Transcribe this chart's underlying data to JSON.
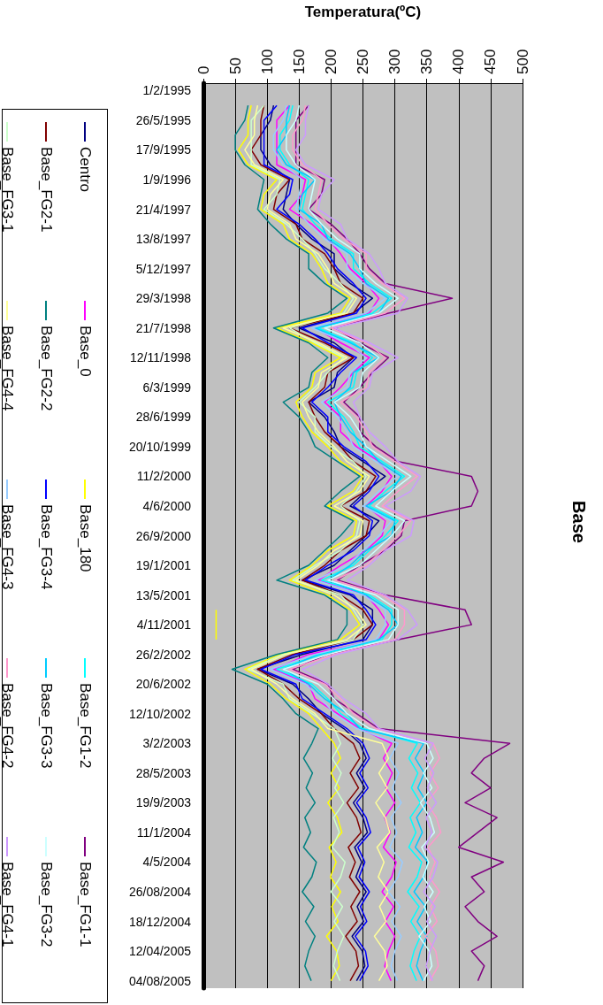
{
  "chart_data": {
    "type": "line",
    "title": "Base",
    "xlabel": "Temperatura(ºC)",
    "orientation": "horizontal",
    "categories": [
      "1/2/1995",
      null,
      "26/5/1995",
      null,
      "17/9/1995",
      null,
      "1/9/1996",
      null,
      "21/4/1997",
      null,
      "13/8/1997",
      null,
      "5/12/1997",
      null,
      "29/3/1998",
      null,
      "21/7/1998",
      null,
      "12/11/1998",
      null,
      "6/3/1999",
      null,
      "28/6/1999",
      null,
      "20/10/1999",
      null,
      "11/2/2000",
      null,
      "4/6/2000",
      null,
      "26/9/2000",
      null,
      "19/1/2001",
      null,
      "13/5/2001",
      null,
      "4/11/2001",
      null,
      "26/2/2002",
      null,
      "20/6/2002",
      null,
      "12/10/2002",
      null,
      "3/2/2003",
      null,
      "28/5/2003",
      null,
      "19/9/2003",
      null,
      "11/1/2004",
      null,
      "4/5/2004",
      null,
      "26/08/2004",
      null,
      "18/12/2004",
      null,
      "12/04/2005",
      null,
      "04/08/2005"
    ],
    "xlim": [
      0,
      500
    ],
    "xticks": [
      0,
      50,
      100,
      150,
      200,
      250,
      300,
      350,
      400,
      450,
      500
    ],
    "grid": "x",
    "legend": "left",
    "marker": "none",
    "series": [
      {
        "name": "Centro",
        "color": "#000080",
        "values": [
          null,
          110,
          105,
          90,
          90,
          105,
          135,
          130,
          125,
          145,
          170,
          205,
          205,
          230,
          265,
          235,
          150,
          205,
          235,
          210,
          205,
          165,
          190,
          205,
          215,
          250,
          285,
          255,
          230,
          275,
          255,
          230,
          205,
          155,
          230,
          265,
          265,
          250,
          155,
          85,
          140,
          165,
          185,
          220,
          245,
          255,
          240,
          253,
          235,
          250,
          257,
          237,
          248,
          239,
          255,
          241,
          251,
          233,
          249,
          253,
          240
        ]
      },
      {
        "name": "Base_0",
        "color": "#ff00ff",
        "values": [
          null,
          135,
          115,
          115,
          115,
          115,
          160,
          155,
          135,
          170,
          195,
          215,
          230,
          255,
          275,
          260,
          175,
          215,
          260,
          235,
          215,
          190,
          215,
          215,
          240,
          275,
          295,
          280,
          255,
          285,
          280,
          255,
          215,
          180,
          255,
          275,
          290,
          275,
          165,
          110,
          165,
          175,
          210,
          245,
          295,
          282,
          296,
          286,
          300,
          284,
          293,
          282,
          302,
          295,
          280,
          298,
          285,
          300,
          290,
          284,
          294
        ]
      },
      {
        "name": "Base_180",
        "color": "#ffff00",
        "values": [
          null,
          75,
          70,
          70,
          55,
          70,
          115,
          95,
          90,
          125,
          135,
          170,
          185,
          195,
          230,
          215,
          115,
          170,
          215,
          175,
          170,
          145,
          155,
          170,
          195,
          215,
          250,
          235,
          195,
          240,
          235,
          195,
          170,
          135,
          195,
          230,
          245,
          215,
          120,
          65,
          105,
          130,
          165,
          185,
          205,
          215,
          200,
          213,
          195,
          210,
          217,
          197,
          208,
          199,
          215,
          201,
          211,
          193,
          209,
          213,
          200
        ]
      },
      {
        "name": "Base_FG1-2",
        "color": "#00ffff",
        "values": [
          null,
          140,
          135,
          120,
          120,
          135,
          165,
          160,
          155,
          175,
          200,
          235,
          235,
          260,
          295,
          265,
          180,
          235,
          265,
          240,
          235,
          195,
          220,
          235,
          245,
          280,
          315,
          285,
          260,
          305,
          285,
          260,
          235,
          185,
          260,
          295,
          295,
          280,
          185,
          115,
          170,
          195,
          215,
          250,
          335,
          322,
          336,
          326,
          340,
          324,
          333,
          322,
          342,
          335,
          320,
          338,
          325,
          340,
          330,
          324,
          334
        ]
      },
      {
        "name": "Base_FG1-1",
        "color": "#800080",
        "values": [
          null,
          165,
          145,
          145,
          145,
          145,
          190,
          185,
          165,
          200,
          225,
          245,
          260,
          285,
          390,
          290,
          205,
          245,
          290,
          265,
          245,
          220,
          245,
          245,
          270,
          305,
          420,
          430,
          420,
          315,
          310,
          285,
          245,
          210,
          285,
          410,
          420,
          305,
          195,
          140,
          195,
          205,
          240,
          275,
          480,
          440,
          420,
          450,
          410,
          460,
          430,
          400,
          470,
          420,
          440,
          410,
          430,
          460,
          420,
          440,
          430
        ]
      },
      {
        "name": "Base_FG2-1",
        "color": "#800000",
        "values": [
          null,
          95,
          90,
          90,
          75,
          90,
          135,
          115,
          110,
          145,
          155,
          190,
          205,
          215,
          250,
          235,
          135,
          190,
          235,
          195,
          190,
          165,
          175,
          190,
          215,
          235,
          270,
          255,
          215,
          260,
          255,
          215,
          190,
          155,
          215,
          250,
          265,
          235,
          140,
          85,
          125,
          150,
          185,
          205,
          235,
          245,
          230,
          243,
          225,
          240,
          247,
          227,
          238,
          229,
          245,
          231,
          241,
          223,
          239,
          243,
          230
        ]
      },
      {
        "name": "Base_FG2-2",
        "color": "#008080",
        "values": [
          null,
          70,
          65,
          50,
          50,
          65,
          95,
          90,
          85,
          105,
          130,
          165,
          165,
          190,
          225,
          195,
          110,
          165,
          195,
          170,
          165,
          125,
          150,
          165,
          175,
          210,
          245,
          215,
          190,
          235,
          215,
          190,
          165,
          115,
          190,
          225,
          225,
          210,
          115,
          45,
          100,
          125,
          145,
          180,
          170,
          157,
          171,
          161,
          175,
          159,
          168,
          157,
          177,
          170,
          155,
          173,
          160,
          175,
          165,
          159,
          169
        ]
      },
      {
        "name": "Base_FG3-4",
        "color": "#0000ff",
        "values": [
          null,
          115,
          95,
          95,
          95,
          95,
          140,
          135,
          115,
          150,
          175,
          195,
          210,
          235,
          255,
          240,
          155,
          195,
          240,
          215,
          195,
          170,
          195,
          195,
          220,
          255,
          275,
          260,
          235,
          265,
          260,
          235,
          195,
          160,
          235,
          255,
          270,
          255,
          145,
          90,
          145,
          155,
          190,
          225,
          250,
          260,
          245,
          258,
          240,
          255,
          262,
          242,
          253,
          244,
          260,
          246,
          256,
          238,
          254,
          258,
          245
        ]
      },
      {
        "name": "Base_FG3-3",
        "color": "#00ccff",
        "values": [
          null,
          135,
          130,
          130,
          115,
          130,
          175,
          155,
          150,
          185,
          195,
          230,
          245,
          255,
          290,
          275,
          175,
          230,
          275,
          235,
          230,
          205,
          215,
          230,
          255,
          275,
          310,
          295,
          255,
          300,
          295,
          255,
          230,
          195,
          255,
          290,
          305,
          275,
          180,
          125,
          165,
          190,
          225,
          245,
          345,
          332,
          346,
          336,
          350,
          334,
          343,
          332,
          352,
          345,
          330,
          348,
          335,
          350,
          340,
          334,
          344
        ]
      },
      {
        "name": "Base_FG3-2",
        "color": "#ccffff",
        "values": [
          null,
          150,
          145,
          130,
          130,
          145,
          175,
          170,
          165,
          185,
          210,
          245,
          245,
          270,
          305,
          275,
          190,
          245,
          275,
          250,
          245,
          205,
          230,
          245,
          255,
          290,
          325,
          295,
          270,
          315,
          295,
          270,
          245,
          195,
          270,
          305,
          305,
          290,
          195,
          125,
          180,
          205,
          225,
          260,
          350,
          360,
          345,
          358,
          340,
          355,
          362,
          342,
          353,
          344,
          360,
          346,
          356,
          338,
          354,
          358,
          345
        ]
      },
      {
        "name": "Base_FG3-1",
        "color": "#ccffcc",
        "values": [
          null,
          95,
          75,
          75,
          75,
          75,
          120,
          115,
          95,
          130,
          155,
          175,
          190,
          215,
          235,
          220,
          135,
          175,
          220,
          195,
          175,
          150,
          175,
          175,
          200,
          235,
          255,
          240,
          215,
          245,
          240,
          215,
          175,
          140,
          215,
          235,
          250,
          235,
          125,
          70,
          125,
          135,
          170,
          205,
          215,
          202,
          216,
          206,
          220,
          204,
          213,
          202,
          222,
          215,
          200,
          218,
          205,
          220,
          210,
          204,
          214
        ]
      },
      {
        "name": "Base_FG4-4",
        "color": "#ffff99",
        "values": [
          null,
          85,
          80,
          80,
          65,
          80,
          125,
          105,
          100,
          135,
          145,
          180,
          195,
          205,
          240,
          225,
          125,
          180,
          225,
          185,
          180,
          155,
          165,
          180,
          205,
          225,
          260,
          245,
          205,
          250,
          245,
          205,
          180,
          145,
          205,
          240,
          255,
          225,
          130,
          75,
          115,
          140,
          175,
          195,
          280,
          290,
          275,
          288,
          270,
          285,
          292,
          272,
          283,
          274,
          290,
          276,
          286,
          268,
          284,
          288,
          275
        ]
      },
      {
        "name": "Base_FG4-3",
        "color": "#99ccff",
        "values": [
          null,
          130,
          125,
          110,
          110,
          125,
          155,
          150,
          145,
          165,
          190,
          225,
          225,
          250,
          285,
          255,
          170,
          225,
          255,
          230,
          225,
          185,
          210,
          225,
          235,
          270,
          305,
          275,
          250,
          295,
          275,
          250,
          225,
          175,
          250,
          285,
          285,
          270,
          175,
          105,
          160,
          185,
          205,
          240,
          305,
          292,
          306,
          296,
          310,
          294,
          303,
          292,
          312,
          305,
          290,
          308,
          295,
          310,
          300,
          294,
          304
        ]
      },
      {
        "name": "Base_FG4-2",
        "color": "#ff99cc",
        "values": [
          null,
          160,
          155,
          140,
          140,
          155,
          185,
          180,
          175,
          195,
          220,
          255,
          255,
          280,
          315,
          285,
          200,
          255,
          285,
          260,
          255,
          215,
          240,
          255,
          265,
          300,
          335,
          305,
          280,
          325,
          305,
          280,
          255,
          205,
          280,
          315,
          315,
          300,
          205,
          135,
          190,
          215,
          235,
          270,
          360,
          370,
          355,
          368,
          350,
          365,
          372,
          352,
          363,
          354,
          370,
          356,
          366,
          348,
          364,
          368,
          355
        ]
      },
      {
        "name": "Base_FG4-1",
        "color": "#cc99ff",
        "values": [
          null,
          165,
          160,
          160,
          145,
          160,
          205,
          185,
          180,
          215,
          225,
          260,
          275,
          285,
          320,
          305,
          205,
          260,
          305,
          265,
          260,
          235,
          245,
          260,
          285,
          305,
          340,
          325,
          285,
          330,
          325,
          285,
          260,
          225,
          285,
          320,
          335,
          305,
          210,
          155,
          195,
          220,
          255,
          275,
          360,
          347,
          361,
          351,
          365,
          349,
          358,
          347,
          367,
          360,
          345,
          363,
          350,
          365,
          355,
          349,
          359
        ]
      },
      {
        "color": "#ffff00",
        "values": [
          null,
          null,
          null,
          null,
          null,
          null,
          null,
          null,
          null,
          null,
          null,
          null,
          null,
          null,
          null,
          null,
          null,
          null,
          null,
          null,
          null,
          null,
          null,
          null,
          null,
          null,
          null,
          null,
          null,
          null,
          null,
          null,
          null,
          null,
          null,
          20,
          20,
          20,
          null,
          null,
          null,
          null,
          null,
          null,
          null,
          null,
          null,
          null,
          null,
          null,
          null,
          null,
          null,
          null,
          null,
          null,
          null,
          null,
          null,
          null,
          null
        ]
      }
    ]
  }
}
